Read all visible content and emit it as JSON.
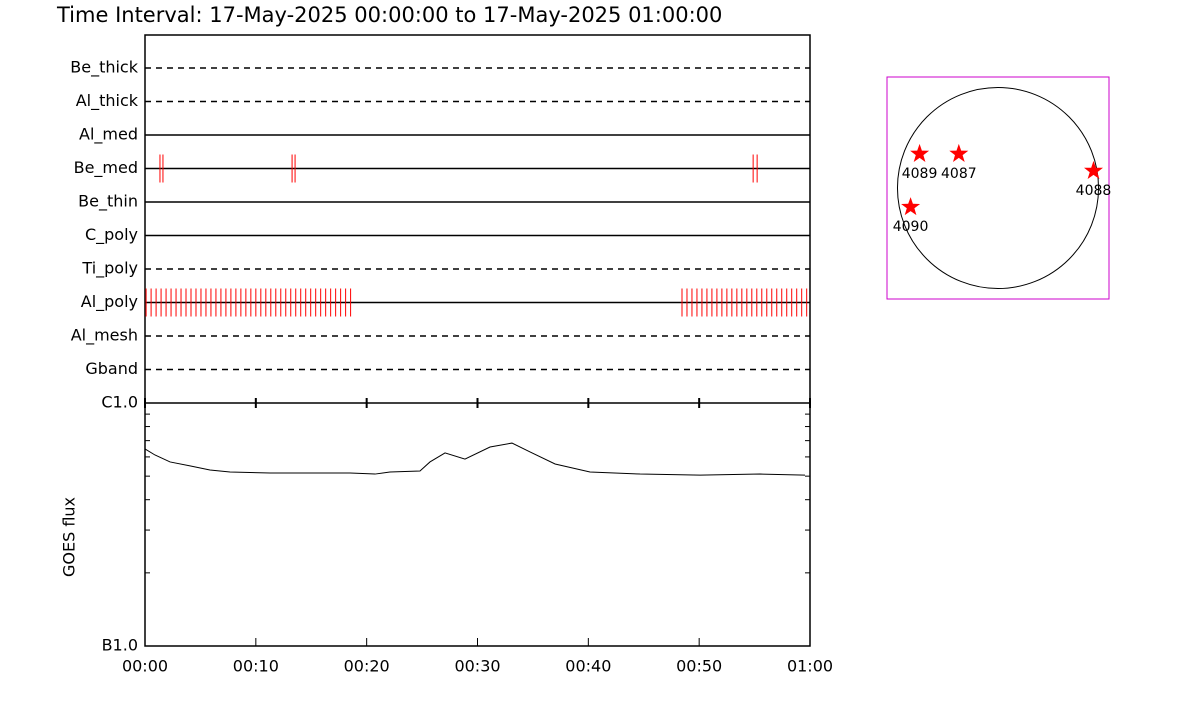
{
  "title": "Time Interval: 17-May-2025 00:00:00 to 17-May-2025 01:00:00",
  "chart_data": [
    {
      "type": "timeline",
      "color": "#ff0000",
      "xlim": [
        0,
        60
      ],
      "rows": [
        {
          "name": "Be_thick",
          "style": "dashed",
          "times": []
        },
        {
          "name": "Al_thick",
          "style": "dashed",
          "times": []
        },
        {
          "name": "Al_med",
          "style": "solid",
          "times": []
        },
        {
          "name": "Be_med",
          "style": "solid",
          "times": [
            1.35,
            1.62,
            13.27,
            13.54,
            54.87,
            55.23
          ]
        },
        {
          "name": "Be_thin",
          "style": "solid",
          "times": []
        },
        {
          "name": "C_poly",
          "style": "solid",
          "times": []
        },
        {
          "name": "Ti_poly",
          "style": "dashed",
          "times": []
        },
        {
          "name": "Al_poly",
          "style": "solid",
          "times": [
            0.1,
            0.55,
            1.0,
            1.45,
            1.9,
            2.35,
            2.8,
            3.25,
            3.7,
            4.15,
            4.6,
            5.05,
            5.5,
            5.95,
            6.4,
            6.85,
            7.3,
            7.75,
            8.2,
            8.65,
            9.1,
            9.55,
            10.0,
            10.45,
            10.9,
            11.35,
            11.8,
            12.25,
            12.7,
            13.15,
            13.6,
            14.05,
            14.5,
            14.95,
            15.4,
            15.85,
            16.3,
            16.75,
            17.2,
            17.65,
            18.1,
            18.55,
            48.45,
            48.9,
            49.35,
            49.8,
            50.25,
            50.7,
            51.15,
            51.6,
            52.05,
            52.5,
            52.95,
            53.4,
            53.85,
            54.3,
            54.75,
            55.2,
            55.65,
            56.1,
            56.55,
            57.0,
            57.45,
            57.9,
            58.35,
            58.8,
            59.25,
            59.7
          ]
        },
        {
          "name": "Al_mesh",
          "style": "dashed",
          "times": []
        },
        {
          "name": "Gband",
          "style": "dashed",
          "times": []
        }
      ]
    },
    {
      "type": "line",
      "ylabel": "GOES flux",
      "color": "#000000",
      "log": true,
      "x": [
        0,
        0.9,
        2.26,
        4.06,
        5.86,
        7.67,
        11.28,
        15.79,
        18.5,
        20.75,
        22.1,
        24.81,
        25.71,
        27.07,
        28.87,
        31.13,
        33.11,
        34.74,
        37.0,
        40.15,
        44.67,
        50.08,
        55.5,
        59.55
      ],
      "values": [
        6.47e-07,
        6.11e-07,
        5.72e-07,
        5.51e-07,
        5.3e-07,
        5.2e-07,
        5.15e-07,
        5.15e-07,
        5.15e-07,
        5.1e-07,
        5.2e-07,
        5.25e-07,
        5.72e-07,
        6.23e-07,
        5.88e-07,
        6.59e-07,
        6.84e-07,
        6.29e-07,
        5.61e-07,
        5.2e-07,
        5.1e-07,
        5.05e-07,
        5.1e-07,
        5.05e-07
      ],
      "xlim": [
        0,
        60
      ],
      "xticks": [
        {
          "value": 0,
          "label": "00:00"
        },
        {
          "value": 10,
          "label": "00:10"
        },
        {
          "value": 20,
          "label": "00:20"
        },
        {
          "value": 30,
          "label": "00:30"
        },
        {
          "value": 40,
          "label": "00:40"
        },
        {
          "value": 50,
          "label": "00:50"
        },
        {
          "value": 60,
          "label": "01:00"
        }
      ],
      "ylim": [
        1e-07,
        1e-06
      ],
      "yticks": [
        {
          "value": 1e-07,
          "label": "B1.0"
        },
        {
          "value": 1e-06,
          "label": "C1.0"
        }
      ],
      "yminorticks": [
        2e-07,
        3e-07,
        4e-07,
        5e-07,
        6e-07,
        7e-07,
        8e-07,
        9e-07
      ]
    },
    {
      "type": "map",
      "color": "#ff0000",
      "frame_color": "#cc00cc",
      "xlim": [
        -1060,
        1060
      ],
      "ylim": [
        -1060,
        1060
      ],
      "disk_radius": 960,
      "regions": [
        {
          "label": "4089",
          "x": -749,
          "y": 326
        },
        {
          "label": "4087",
          "x": -374,
          "y": 326
        },
        {
          "label": "4088",
          "x": 912,
          "y": 163
        },
        {
          "label": "4090",
          "x": -835,
          "y": -182
        }
      ]
    }
  ]
}
